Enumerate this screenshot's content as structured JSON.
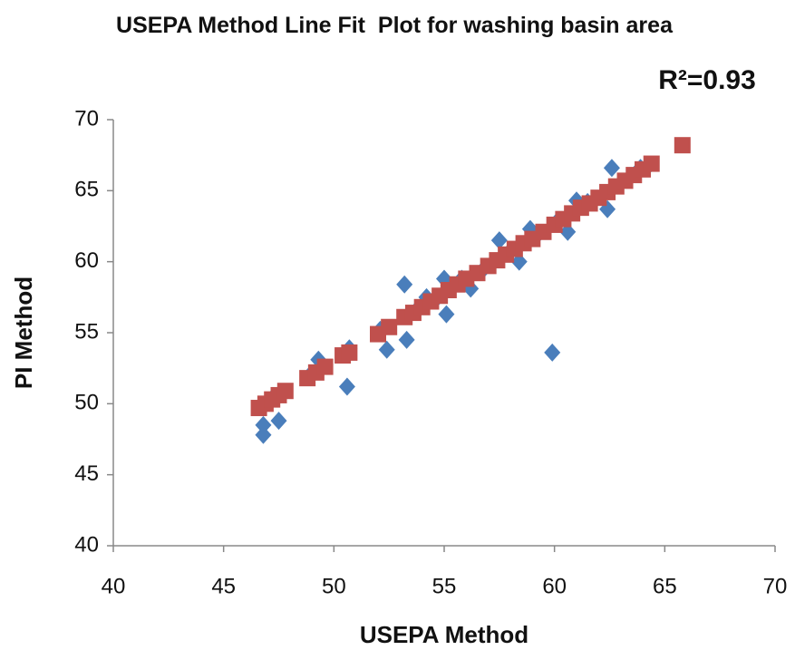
{
  "chart_data": {
    "type": "scatter",
    "title": "USEPA Method Line Fit  Plot for washing basin area",
    "annotation": "R²=0.93",
    "xlabel": "USEPA Method",
    "ylabel": "PI Method",
    "xlim": [
      40,
      70
    ],
    "ylim": [
      40,
      70
    ],
    "xticks": [
      40,
      45,
      50,
      55,
      60,
      65,
      70
    ],
    "yticks": [
      40,
      45,
      50,
      55,
      60,
      65,
      70
    ],
    "grid": false,
    "series": [
      {
        "color": "#4a7ebb",
        "marker": "diamond",
        "x": [
          46.8,
          46.8,
          47.5,
          49.3,
          50.6,
          52.4,
          53.2,
          53.3,
          54.2,
          55.0,
          55.1,
          56.2,
          57.5,
          58.4,
          58.9,
          59.9,
          60.6,
          61.0,
          62.4,
          62.6,
          47.2,
          48.9,
          50.7,
          52.1,
          53.8,
          54.6,
          55.8,
          56.8,
          57.9,
          59.3,
          60.1,
          61.5,
          63.0,
          63.9,
          64.3
        ],
        "y": [
          47.8,
          48.5,
          48.8,
          53.1,
          51.2,
          53.8,
          58.4,
          54.5,
          57.5,
          58.8,
          56.3,
          58.1,
          61.5,
          60.0,
          62.3,
          53.6,
          62.1,
          64.3,
          63.7,
          66.6,
          50.4,
          52.0,
          53.9,
          55.2,
          56.7,
          57.3,
          58.8,
          59.5,
          60.6,
          62.0,
          62.8,
          64.2,
          65.5,
          66.6,
          66.8
        ]
      },
      {
        "color": "#c0504d",
        "marker": "square",
        "x": [
          46.6,
          46.9,
          47.2,
          47.5,
          47.8,
          48.8,
          49.2,
          49.6,
          50.4,
          50.7,
          52.0,
          52.5,
          53.2,
          53.6,
          54.0,
          54.4,
          54.8,
          55.2,
          55.6,
          56.0,
          56.5,
          57.0,
          57.4,
          57.8,
          58.2,
          58.6,
          59.0,
          59.5,
          60.0,
          60.4,
          60.8,
          61.2,
          61.6,
          62.0,
          62.4,
          62.8,
          63.2,
          63.6,
          64.0,
          64.4,
          65.8
        ],
        "y": [
          49.7,
          50.0,
          50.3,
          50.6,
          50.9,
          51.8,
          52.2,
          52.6,
          53.4,
          53.6,
          54.9,
          55.4,
          56.1,
          56.4,
          56.8,
          57.2,
          57.6,
          58.0,
          58.4,
          58.8,
          59.2,
          59.7,
          60.1,
          60.5,
          60.9,
          61.3,
          61.6,
          62.1,
          62.6,
          63.0,
          63.4,
          63.8,
          64.1,
          64.5,
          64.9,
          65.3,
          65.7,
          66.1,
          66.5,
          66.9,
          68.2
        ]
      }
    ]
  }
}
